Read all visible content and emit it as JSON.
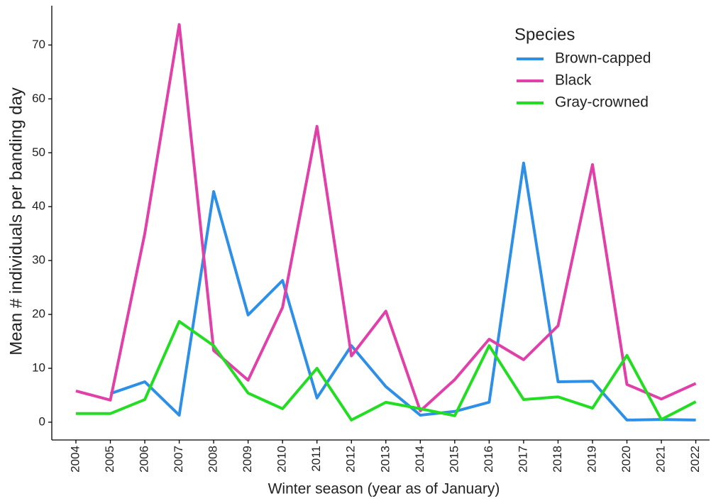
{
  "chart_data": {
    "type": "line",
    "x_label": "Winter season (year as of January)",
    "y_label": "Mean # individuals per banding day",
    "legend_title": "Species",
    "legend_position": "top-right",
    "x": [
      2004,
      2005,
      2006,
      2007,
      2008,
      2009,
      2010,
      2011,
      2012,
      2013,
      2014,
      2015,
      2016,
      2017,
      2018,
      2019,
      2020,
      2021,
      2022
    ],
    "series": [
      {
        "name": "Brown-capped",
        "color": "#2e8fe6",
        "values": [
          null,
          5.3,
          7.5,
          1.3,
          42.8,
          19.9,
          26.3,
          4.5,
          14.2,
          6.6,
          1.3,
          2.0,
          3.7,
          48.1,
          7.5,
          7.6,
          0.4,
          0.5,
          0.4
        ]
      },
      {
        "name": "Black",
        "color": "#e040a8",
        "values": [
          5.8,
          4.1,
          35,
          73.8,
          13.3,
          7.8,
          21.3,
          54.9,
          12.3,
          20.6,
          2.1,
          7.9,
          15.4,
          11.6,
          17.9,
          47.8,
          7.0,
          4.3,
          7.2
        ]
      },
      {
        "name": "Gray-crowned",
        "color": "#22dd22",
        "values": [
          1.6,
          1.6,
          4.2,
          18.7,
          14.2,
          5.4,
          2.5,
          10.0,
          0.4,
          3.7,
          2.5,
          1.2,
          14.2,
          4.2,
          4.7,
          2.6,
          12.4,
          0.5,
          3.8
        ]
      }
    ],
    "xlim": [
      2003.3,
      2022.4
    ],
    "xticks": [
      2004,
      2005,
      2006,
      2007,
      2008,
      2009,
      2010,
      2011,
      2012,
      2013,
      2014,
      2015,
      2016,
      2017,
      2018,
      2019,
      2020,
      2021,
      2022
    ],
    "ylim": [
      -3.3,
      77.3
    ],
    "yticks": [
      0,
      10,
      20,
      30,
      40,
      50,
      60,
      70
    ],
    "grid": false
  }
}
